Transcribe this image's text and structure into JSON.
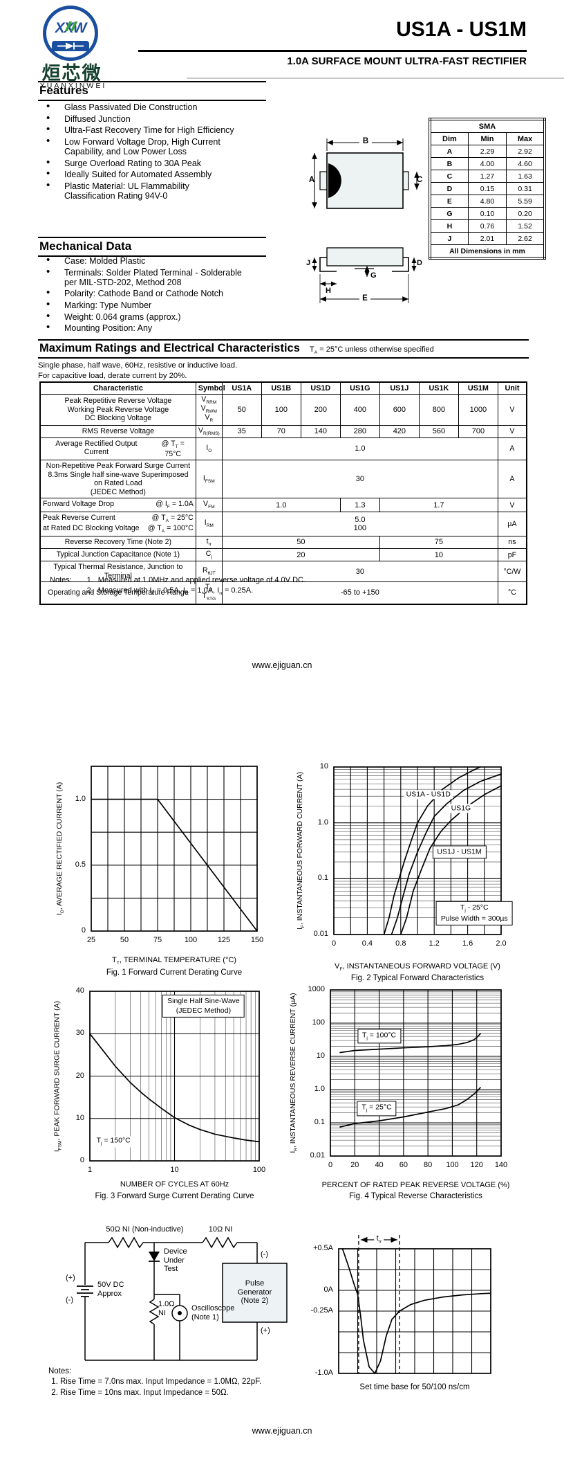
{
  "header": {
    "title": "US1A - US1M",
    "subtitle": "1.0A SURFACE MOUNT ULTRA-FAST RECTIFIER",
    "logo_text": "XXW",
    "logo_cn": "烜芯微",
    "logo_en": "XUANXINWEI"
  },
  "features": {
    "heading": "Features",
    "items": [
      "Glass Passivated Die Construction",
      "Diffused Junction",
      "Ultra-Fast Recovery Time for High Efficiency",
      "Low Forward Voltage Drop, High Current\nCapability, and Low Power Loss",
      "Surge Overload Rating to 30A Peak",
      "Ideally Suited for Automated Assembly",
      "Plastic Material: UL Flammability\nClassification Rating 94V-0"
    ]
  },
  "mechanical": {
    "heading": "Mechanical Data",
    "items": [
      "Case: Molded Plastic",
      "Terminals: Solder Plated Terminal - Solderable\nper MIL-STD-202, Method 208",
      "Polarity: Cathode Band or Cathode Notch",
      "Marking: Type Number",
      "Weight: 0.064 grams (approx.)",
      "Mounting Position: Any"
    ]
  },
  "package": {
    "name": "SMA",
    "cols": [
      "Dim",
      "Min",
      "Max"
    ],
    "rows": [
      {
        "dim": "A",
        "min": "2.29",
        "max": "2.92"
      },
      {
        "dim": "B",
        "min": "4.00",
        "max": "4.60"
      },
      {
        "dim": "C",
        "min": "1.27",
        "max": "1.63"
      },
      {
        "dim": "D",
        "min": "0.15",
        "max": "0.31"
      },
      {
        "dim": "E",
        "min": "4.80",
        "max": "5.59"
      },
      {
        "dim": "G",
        "min": "0.10",
        "max": "0.20"
      },
      {
        "dim": "H",
        "min": "0.76",
        "max": "1.52"
      },
      {
        "dim": "J",
        "min": "2.01",
        "max": "2.62"
      }
    ],
    "footer": "All Dimensions in mm",
    "dl": {
      "A": "A",
      "B": "B",
      "C": "C",
      "D": "D",
      "E": "E",
      "G": "G",
      "H": "H",
      "J": "J"
    }
  },
  "ratings": {
    "heading": "Maximum Ratings and Electrical Characteristics",
    "condition": "T~A~ = 25°C unless otherwise specified",
    "intro1": "Single phase, half wave, 60Hz, resistive or inductive load.",
    "intro2": "For capacitive load, derate current by 20%.",
    "columns": [
      "Characteristic",
      "Symbol",
      "US1A",
      "US1B",
      "US1D",
      "US1G",
      "US1J",
      "US1K",
      "US1M",
      "Unit"
    ],
    "rows": [
      {
        "char": [
          {
            "t": "Peak Repetitive Reverse Voltage"
          },
          {
            "t": "Working Peak Reverse Voltage"
          },
          {
            "t": "DC Blocking Voltage"
          }
        ],
        "sym": [
          "V~RRM~",
          "V~RWM~",
          "V~R~"
        ],
        "vals": [
          {
            "t": "50"
          },
          {
            "t": "100"
          },
          {
            "t": "200"
          },
          {
            "t": "400"
          },
          {
            "t": "600"
          },
          {
            "t": "800"
          },
          {
            "t": "1000"
          }
        ],
        "unit": "V"
      },
      {
        "char": [
          {
            "t": "RMS Reverse Voltage"
          }
        ],
        "sym": [
          "V~R(RMS)~"
        ],
        "vals": [
          {
            "t": "35"
          },
          {
            "t": "70"
          },
          {
            "t": "140"
          },
          {
            "t": "280"
          },
          {
            "t": "420"
          },
          {
            "t": "560"
          },
          {
            "t": "700"
          }
        ],
        "unit": "V"
      },
      {
        "char": [
          {
            "t": "Average Rectified Output Current",
            "c": "@ T~T~ = 75°C"
          }
        ],
        "sym": [
          "I~O~"
        ],
        "vals": [
          {
            "t": "1.0",
            "span": 7
          }
        ],
        "unit": "A"
      },
      {
        "char": [
          {
            "t": "Non-Repetitive Peak Forward Surge Current"
          },
          {
            "t": "8.3ms Single half sine-wave Superimposed on Rated Load"
          },
          {
            "t": "(JEDEC Method)"
          }
        ],
        "sym": [
          "I~FSM~"
        ],
        "vals": [
          {
            "t": "30",
            "span": 7
          }
        ],
        "unit": "A"
      },
      {
        "char": [
          {
            "t": "Forward Voltage Drop",
            "c": "@ I~F~ = 1.0A"
          }
        ],
        "sym": [
          "V~FM~"
        ],
        "vals": [
          {
            "t": "1.0",
            "span": 3
          },
          {
            "t": "1.3",
            "span": 1
          },
          {
            "t": "1.7",
            "span": 3
          }
        ],
        "unit": "V"
      },
      {
        "char": [
          {
            "t": "Peak Reverse Current",
            "c": "@ T~A~ =  25°C"
          },
          {
            "t": "at Rated DC Blocking Voltage",
            "c": "@ T~A~ = 100°C"
          }
        ],
        "sym": [
          "I~RM~"
        ],
        "vals": [
          {
            "t": "5.0\n100",
            "span": 7
          }
        ],
        "unit": "µA"
      },
      {
        "char": [
          {
            "t": "Reverse Recovery Time (Note 2)"
          }
        ],
        "sym": [
          "t~rr~"
        ],
        "vals": [
          {
            "t": "50",
            "span": 4
          },
          {
            "t": "75",
            "span": 3
          }
        ],
        "unit": "ns"
      },
      {
        "char": [
          {
            "t": "Typical Junction Capacitance (Note 1)"
          }
        ],
        "sym": [
          "C~j~"
        ],
        "vals": [
          {
            "t": "20",
            "span": 4
          },
          {
            "t": "10",
            "span": 3
          }
        ],
        "unit": "pF"
      },
      {
        "char": [
          {
            "t": "Typical Thermal Resistance, Junction to Terminal"
          }
        ],
        "sym": [
          "R~θJT~"
        ],
        "vals": [
          {
            "t": "30",
            "span": 7
          }
        ],
        "unit": "°C/W"
      },
      {
        "char": [
          {
            "t": "Operating and Storage Temperature Range"
          }
        ],
        "sym": [
          "T~j~, T~STG~"
        ],
        "vals": [
          {
            "t": "-65 to +150",
            "span": 7
          }
        ],
        "unit": "°C"
      }
    ]
  },
  "notes": {
    "label": "Notes:",
    "items": [
      "Measured at 1.0MHz and applied reverse voltage of 4.0V DC.",
      "Measured with I~F~ = 0.5A, I~R~ = 1.0A, I~rr~ = 0.25A."
    ]
  },
  "footer": {
    "url": "www.ejiguan.cn"
  },
  "chart_data": [
    {
      "type": "line",
      "title": "Fig. 1  Forward Current Derating Curve",
      "xlabel": "T~T~, TERMINAL TEMPERATURE (°C)",
      "ylabel": "I~O~, AVERAGE RECTIFIED CURRENT (A)",
      "xlim": [
        25,
        150
      ],
      "ylim": [
        0,
        1.25
      ],
      "xgrid": 12.5,
      "ygrid": 0.25,
      "xticks": [
        {
          "v": 25,
          "l": "25"
        },
        {
          "v": 50,
          "l": "50"
        },
        {
          "v": 75,
          "l": "75"
        },
        {
          "v": 100,
          "l": "100"
        },
        {
          "v": 125,
          "l": "125"
        },
        {
          "v": 150,
          "l": "150"
        }
      ],
      "yticks": [
        {
          "v": 0,
          "l": "0"
        },
        {
          "v": 0.5,
          "l": "0.5"
        },
        {
          "v": 1.0,
          "l": "1.0"
        }
      ],
      "series": [
        {
          "name": "io-derating",
          "points": [
            [
              25,
              1.0
            ],
            [
              75,
              1.0
            ],
            [
              150,
              0
            ]
          ]
        }
      ]
    },
    {
      "type": "line",
      "title": "Fig. 2  Typical Forward Characteristics",
      "xlabel": "V~F~, INSTANTANEOUS FORWARD VOLTAGE (V)",
      "ylabel": "I~F~, INSTANTANEOUS FORWARD CURRENT (A)",
      "xlim": [
        0,
        2.0
      ],
      "ylim": [
        0.01,
        10
      ],
      "xgrid": 0.2,
      "ylog": true,
      "xticks": [
        {
          "v": 0,
          "l": "0"
        },
        {
          "v": 0.4,
          "l": "0.4"
        },
        {
          "v": 0.8,
          "l": "0.8"
        },
        {
          "v": 1.2,
          "l": "1.2"
        },
        {
          "v": 1.6,
          "l": "1.6"
        },
        {
          "v": 2.0,
          "l": "2.0"
        }
      ],
      "yticks": [
        {
          "v": 0.01,
          "l": "0.01"
        },
        {
          "v": 0.1,
          "l": "0.1"
        },
        {
          "v": 1.0,
          "l": "1.0"
        },
        {
          "v": 10,
          "l": "10"
        }
      ],
      "series": [
        {
          "name": "US1A - US1D",
          "points": [
            [
              0.6,
              0.01
            ],
            [
              0.66,
              0.02
            ],
            [
              0.72,
              0.05
            ],
            [
              0.78,
              0.1
            ],
            [
              0.85,
              0.22
            ],
            [
              0.93,
              0.5
            ],
            [
              1.0,
              1.0
            ],
            [
              1.12,
              2.0
            ],
            [
              1.3,
              4.0
            ],
            [
              1.5,
              6.5
            ],
            [
              1.65,
              8.5
            ],
            [
              1.75,
              10
            ]
          ]
        },
        {
          "name": "US1G",
          "points": [
            [
              0.69,
              0.01
            ],
            [
              0.76,
              0.02
            ],
            [
              0.83,
              0.05
            ],
            [
              0.9,
              0.12
            ],
            [
              1.0,
              0.3
            ],
            [
              1.1,
              0.65
            ],
            [
              1.2,
              1.3
            ],
            [
              1.35,
              2.2
            ],
            [
              1.55,
              3.8
            ],
            [
              1.75,
              5.5
            ],
            [
              2.0,
              7.5
            ]
          ]
        },
        {
          "name": "US1J - US1M",
          "points": [
            [
              0.8,
              0.01
            ],
            [
              0.87,
              0.02
            ],
            [
              0.95,
              0.06
            ],
            [
              1.05,
              0.15
            ],
            [
              1.15,
              0.35
            ],
            [
              1.28,
              0.7
            ],
            [
              1.4,
              1.1
            ],
            [
              1.6,
              2.0
            ],
            [
              1.8,
              3.2
            ],
            [
              2.0,
              4.6
            ]
          ]
        }
      ],
      "annotations": [
        {
          "x": 1.13,
          "y": 3.2,
          "text": "US1A - US1D"
        },
        {
          "x": 1.52,
          "y": 1.8,
          "text": "US1G"
        },
        {
          "x": 1.5,
          "y": 0.3,
          "text": "US1J - US1M",
          "box": true
        },
        {
          "x": 1.68,
          "y": 0.024,
          "text": "T~j~ - 25°C\nPulse Width = 300µs",
          "box": true
        }
      ]
    },
    {
      "type": "line",
      "title": "Fig. 3  Forward Surge Current Derating Curve",
      "xlabel": "NUMBER OF CYCLES AT 60Hz",
      "ylabel": "I~FSM~, PEAK FORWARD SURGE CURRENT (A)",
      "xlim": [
        1,
        100
      ],
      "ylim": [
        0,
        40
      ],
      "xlog": true,
      "ygrid": 10,
      "xticks": [
        {
          "v": 1,
          "l": "1"
        },
        {
          "v": 10,
          "l": "10"
        },
        {
          "v": 100,
          "l": "100"
        }
      ],
      "yticks": [
        {
          "v": 0,
          "l": "0"
        },
        {
          "v": 10,
          "l": "10"
        },
        {
          "v": 20,
          "l": "20"
        },
        {
          "v": 30,
          "l": "30"
        },
        {
          "v": 40,
          "l": "40"
        }
      ],
      "series": [
        {
          "name": "ifsm-derating",
          "points": [
            [
              1,
              30
            ],
            [
              1.5,
              25.5
            ],
            [
              2,
              22.3
            ],
            [
              3,
              18.5
            ],
            [
              4,
              16.2
            ],
            [
              5,
              14.6
            ],
            [
              7,
              12.4
            ],
            [
              10,
              10.2
            ],
            [
              15,
              8.4
            ],
            [
              20,
              7.4
            ],
            [
              30,
              6.3
            ],
            [
              50,
              5.4
            ],
            [
              70,
              4.9
            ],
            [
              100,
              4.5
            ]
          ]
        }
      ],
      "annotations": [
        {
          "x": 1.9,
          "y": 4.5,
          "text": "T~j~ = 150°C"
        },
        {
          "x": 22,
          "y": 36.5,
          "text": "Single Half Sine-Wave\n(JEDEC Method)",
          "box": true
        }
      ]
    },
    {
      "type": "line",
      "title": "Fig. 4  Typical Reverse Characteristics",
      "xlabel": "PERCENT OF RATED PEAK REVERSE VOLTAGE (%)",
      "ylabel": "I~R~, INSTANTANEOUS REVERSE CURRENT (µA)",
      "xlim": [
        0,
        140
      ],
      "ylim": [
        0.01,
        1000
      ],
      "xgrid": 20,
      "ylog": true,
      "xticks": [
        {
          "v": 0,
          "l": "0"
        },
        {
          "v": 20,
          "l": "20"
        },
        {
          "v": 40,
          "l": "40"
        },
        {
          "v": 60,
          "l": "60"
        },
        {
          "v": 80,
          "l": "80"
        },
        {
          "v": 100,
          "l": "100"
        },
        {
          "v": 120,
          "l": "120"
        },
        {
          "v": 140,
          "l": "140"
        }
      ],
      "yticks": [
        {
          "v": 0.01,
          "l": "0.01"
        },
        {
          "v": 0.1,
          "l": "0.1"
        },
        {
          "v": 1.0,
          "l": "1.0"
        },
        {
          "v": 10,
          "l": "10"
        },
        {
          "v": 100,
          "l": "100"
        },
        {
          "v": 1000,
          "l": "1000"
        }
      ],
      "series": [
        {
          "name": "Tj = 100C",
          "points": [
            [
              8,
              13
            ],
            [
              20,
              15
            ],
            [
              40,
              16.5
            ],
            [
              60,
              18
            ],
            [
              80,
              19.5
            ],
            [
              95,
              21
            ],
            [
              105,
              23
            ],
            [
              112,
              26
            ],
            [
              118,
              32
            ],
            [
              121,
              40
            ],
            [
              123,
              48
            ]
          ]
        },
        {
          "name": "Tj = 25C",
          "points": [
            [
              8,
              0.075
            ],
            [
              20,
              0.095
            ],
            [
              40,
              0.115
            ],
            [
              60,
              0.15
            ],
            [
              80,
              0.21
            ],
            [
              95,
              0.27
            ],
            [
              105,
              0.35
            ],
            [
              112,
              0.5
            ],
            [
              118,
              0.75
            ],
            [
              121,
              0.95
            ],
            [
              123,
              1.15
            ]
          ]
        }
      ],
      "annotations": [
        {
          "x": 40,
          "y": 40,
          "text": "T~j~ = 100°C",
          "box": true
        },
        {
          "x": 38,
          "y": 0.27,
          "text": "T~j~ = 25°C",
          "box": true
        }
      ]
    },
    {
      "type": "waveform",
      "caption": "Set time base for 50/100 ns/cm",
      "xlim": [
        0,
        8
      ],
      "ylim": [
        -1.0,
        0.5
      ],
      "xgrid": 1,
      "ygrid": 0.25,
      "yticks": [
        {
          "v": 0.5,
          "l": "+0.5A"
        },
        {
          "v": 0,
          "l": "0A"
        },
        {
          "v": -0.25,
          "l": "-0.25A"
        },
        {
          "v": -1.0,
          "l": "-1.0A"
        }
      ],
      "dashed_x": [
        1.05,
        3.2
      ],
      "arrow_label": "t~rr~",
      "series": [
        {
          "name": "recovery-waveform",
          "points": [
            [
              0.2,
              0.5
            ],
            [
              0.5,
              0.3
            ],
            [
              0.8,
              0.08
            ],
            [
              1.0,
              -0.05
            ],
            [
              1.15,
              -0.3
            ],
            [
              1.3,
              -0.6
            ],
            [
              1.6,
              -0.92
            ],
            [
              1.9,
              -1.0
            ],
            [
              2.2,
              -0.85
            ],
            [
              2.5,
              -0.55
            ],
            [
              2.8,
              -0.35
            ],
            [
              3.2,
              -0.25
            ],
            [
              3.8,
              -0.17
            ],
            [
              4.5,
              -0.12
            ],
            [
              5.5,
              -0.08
            ],
            [
              6.5,
              -0.055
            ],
            [
              7.5,
              -0.04
            ],
            [
              8,
              -0.035
            ]
          ]
        }
      ]
    }
  ],
  "circuit": {
    "r1_label": "50Ω NI (Non-inductive)",
    "r2_label": "10Ω NI",
    "dut_label": "Device\nUnder\nTest",
    "plus_left": "(+)",
    "minus_left": "(-)",
    "battery_label": "50V DC\nApprox",
    "r3_label": "1.0Ω\nNI",
    "scope_label": "Oscilloscope\n(Note 1)",
    "pg_minus": "(-)",
    "pg_plus": "(+)",
    "pg_label": "Pulse\nGenerator\n(Note 2)",
    "notes_label": "Notes:",
    "notes": [
      "Rise Time = 7.0ns max. Input Impedance = 1.0MΩ, 22pF.",
      "Rise Time = 10ns max. Input Impedance = 50Ω."
    ]
  }
}
